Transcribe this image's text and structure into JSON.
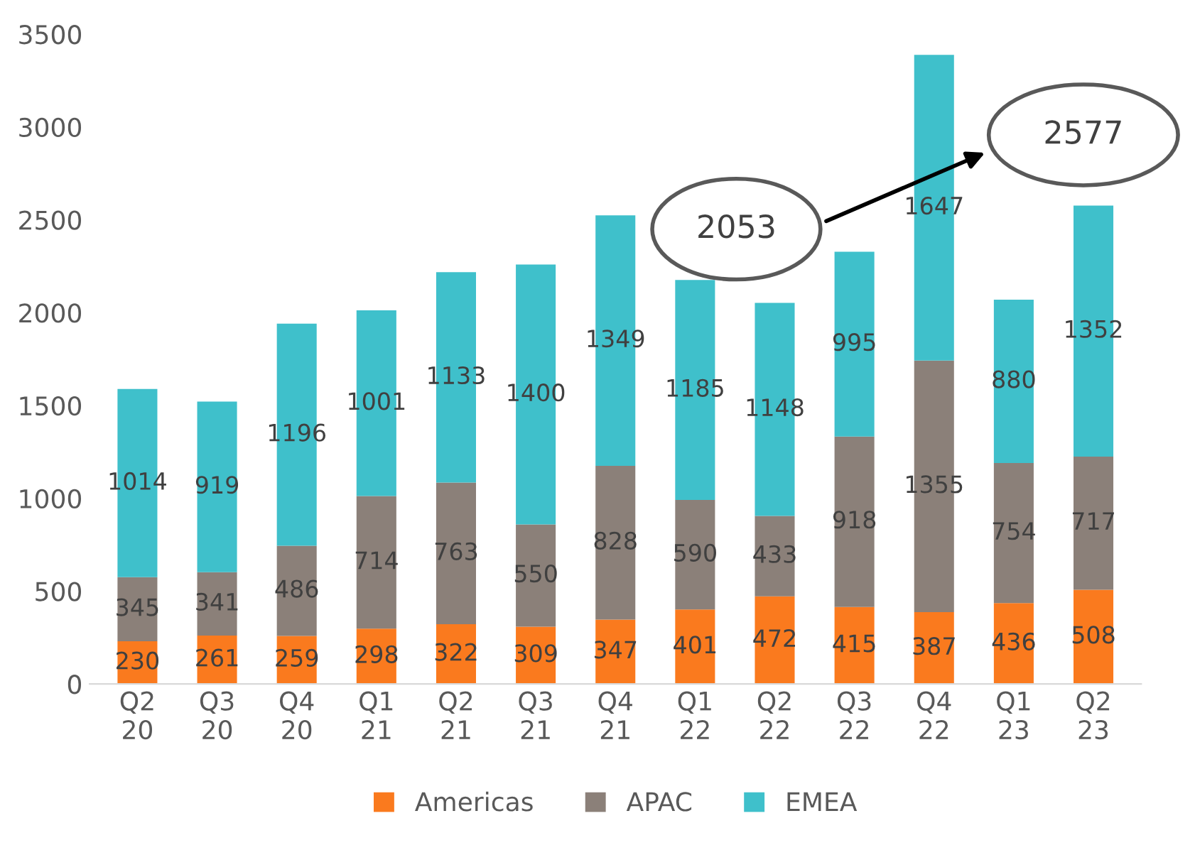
{
  "chart_data": {
    "type": "bar",
    "stacked": true,
    "categories": [
      "Q2\n20",
      "Q3\n20",
      "Q4\n20",
      "Q1\n21",
      "Q2\n21",
      "Q3\n21",
      "Q4\n21",
      "Q1\n22",
      "Q2\n22",
      "Q3\n22",
      "Q4\n22",
      "Q1\n23",
      "Q2\n23"
    ],
    "series": [
      {
        "name": "Americas",
        "color": "#fa7a1e",
        "values": [
          230,
          261,
          259,
          298,
          322,
          309,
          347,
          401,
          472,
          415,
          387,
          436,
          508
        ]
      },
      {
        "name": "APAC",
        "color": "#8b8079",
        "values": [
          345,
          341,
          486,
          714,
          763,
          550,
          828,
          590,
          433,
          918,
          1355,
          754,
          717
        ]
      },
      {
        "name": "EMEA",
        "color": "#3fc0cb",
        "values": [
          1014,
          919,
          1196,
          1001,
          1133,
          1400,
          1349,
          1185,
          1148,
          995,
          1647,
          880,
          1352
        ]
      }
    ],
    "ylim": [
      0,
      3500
    ],
    "yticks": [
      0,
      500,
      1000,
      1500,
      2000,
      2500,
      3000,
      3500
    ],
    "grid": false,
    "legend": "bottom",
    "data_labels": true,
    "annotations": [
      "2053",
      "2577"
    ]
  }
}
